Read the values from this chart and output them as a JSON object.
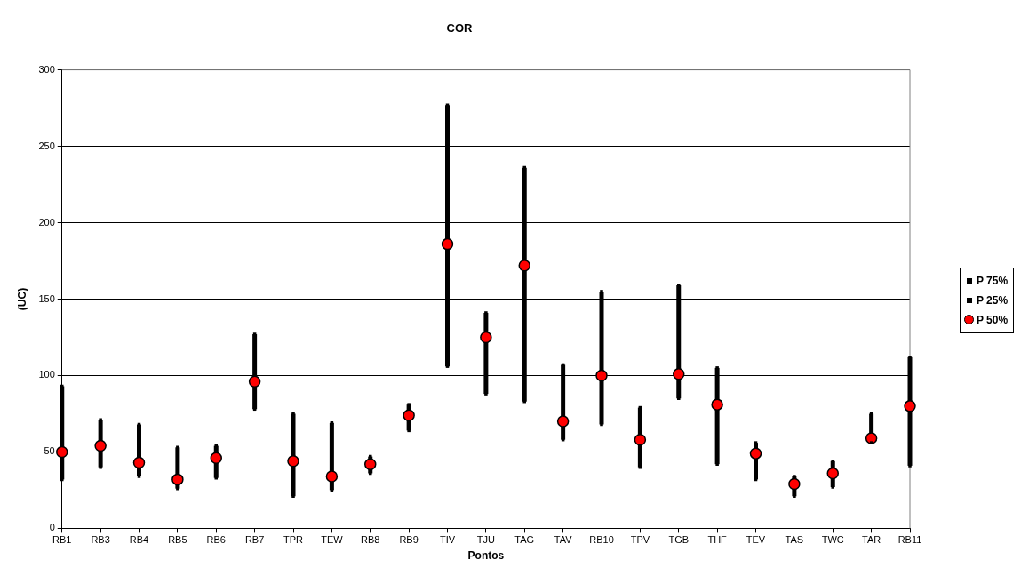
{
  "chart_data": {
    "type": "scatter",
    "title": "COR",
    "xlabel": "Pontos",
    "ylabel": "(UC)",
    "categories": [
      "RB1",
      "RB3",
      "RB4",
      "RB5",
      "RB6",
      "RB7",
      "TPR",
      "TEW",
      "RB8",
      "RB9",
      "TIV",
      "TJU",
      "TAG",
      "TAV",
      "RB10",
      "TPV",
      "TGB",
      "THF",
      "TEV",
      "TAS",
      "TWC",
      "TAR",
      "RB11"
    ],
    "series": [
      {
        "name": "P 75%",
        "color": "#000000",
        "marker": "square",
        "values": [
          93,
          71,
          68,
          53,
          54,
          127,
          75,
          69,
          47,
          81,
          277,
          141,
          236,
          107,
          155,
          79,
          159,
          105,
          56,
          34,
          44,
          75,
          112
        ]
      },
      {
        "name": "P 25%",
        "color": "#000000",
        "marker": "square",
        "values": [
          32,
          40,
          34,
          26,
          33,
          78,
          21,
          25,
          36,
          64,
          106,
          88,
          83,
          58,
          68,
          40,
          85,
          42,
          32,
          21,
          27,
          56,
          41
        ]
      },
      {
        "name": "P 50%",
        "color": "#ff0000",
        "marker": "circle",
        "values": [
          50,
          54,
          43,
          32,
          46,
          96,
          44,
          34,
          42,
          74,
          186,
          125,
          172,
          70,
          100,
          58,
          101,
          81,
          49,
          29,
          36,
          59,
          80
        ]
      }
    ],
    "ylim": [
      0,
      300
    ],
    "yticks": [
      0,
      50,
      100,
      150,
      200,
      250,
      300
    ],
    "grid": "y",
    "legend": "right"
  }
}
